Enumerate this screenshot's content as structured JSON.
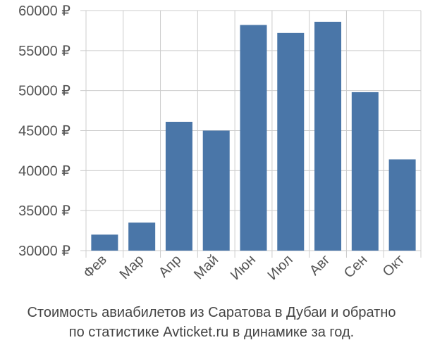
{
  "chart_data": {
    "type": "bar",
    "categories": [
      "Фев",
      "Мар",
      "Апр",
      "Май",
      "Июн",
      "Июл",
      "Авг",
      "Сен",
      "Окт"
    ],
    "values": [
      32000,
      33500,
      46100,
      45000,
      58200,
      57200,
      58600,
      49800,
      41400
    ],
    "ylim": [
      30000,
      60000
    ],
    "yticks": [
      30000,
      35000,
      40000,
      45000,
      50000,
      55000,
      60000
    ],
    "ytick_labels": [
      "30000 ₽",
      "35000 ₽",
      "40000 ₽",
      "45000 ₽",
      "50000 ₽",
      "55000 ₽",
      "60000 ₽"
    ],
    "grid": true,
    "bar_color": "#4a76a8",
    "grid_color": "#cccccc"
  },
  "caption": {
    "line1": "Стоимость авиабилетов из Саратова в Дубаи и обратно",
    "line2": "по статистике Avticket.ru в динамике за год."
  }
}
